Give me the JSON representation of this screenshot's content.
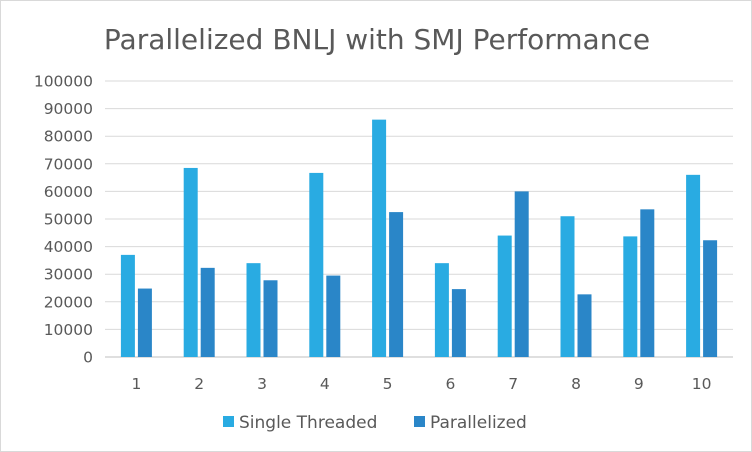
{
  "chart_data": {
    "type": "bar",
    "title": "Parallelized BNLJ with SMJ Performance",
    "xlabel": "",
    "ylabel": "",
    "categories": [
      "1",
      "2",
      "3",
      "4",
      "5",
      "6",
      "7",
      "8",
      "9",
      "10"
    ],
    "ylim": [
      0,
      100000
    ],
    "yticks": [
      "0",
      "10000",
      "20000",
      "30000",
      "40000",
      "50000",
      "60000",
      "70000",
      "80000",
      "90000",
      "100000"
    ],
    "grid": true,
    "legend_position": "bottom",
    "series": [
      {
        "name": "Single Threaded",
        "color": "#29abe2",
        "values": [
          37000,
          68500,
          34000,
          66700,
          86000,
          34000,
          44000,
          51000,
          43700,
          66000
        ]
      },
      {
        "name": "Parallelized",
        "color": "#2a86c8",
        "values": [
          24800,
          32300,
          27800,
          29500,
          52500,
          24600,
          60000,
          22700,
          53500,
          42300
        ]
      }
    ]
  }
}
